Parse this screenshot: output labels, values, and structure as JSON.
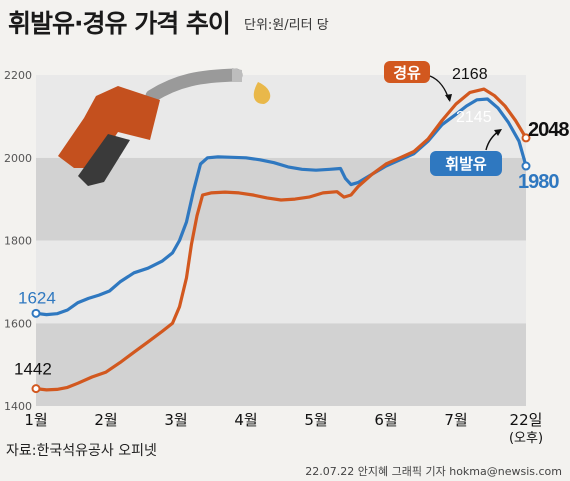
{
  "header": {
    "title": "휘발유·경유 가격 추이",
    "unit": "단위:원/리터 당"
  },
  "footer": {
    "source": "자료:한국석유공사 오피넷",
    "credit": "22.07.22 안지혜 그래픽 기자 hokma@newsis.com"
  },
  "colors": {
    "gasoline": "#2f78c0",
    "diesel": "#d2581f",
    "band_dark": "#d2d2d2",
    "band_light": "#e9e9e9",
    "pump": "#c4501e",
    "nozzle": "#3a3a3a",
    "droplet": "#e9b84a"
  },
  "chart_data": {
    "type": "line",
    "xlabels": [
      "1월",
      "2월",
      "3월",
      "4월",
      "5월",
      "6월",
      "7월",
      "22일"
    ],
    "xlabel_note": "(오후)",
    "ylim": [
      1400,
      2200
    ],
    "yticks": [
      1400,
      1600,
      1800,
      2000,
      2200
    ],
    "series": [
      {
        "name": "휘발유",
        "key": "gasoline",
        "start_label": "1624",
        "peak_label": "2145",
        "end_label": "1980",
        "points": [
          [
            0.0,
            1624
          ],
          [
            0.15,
            1621
          ],
          [
            0.3,
            1623
          ],
          [
            0.45,
            1632
          ],
          [
            0.6,
            1650
          ],
          [
            0.75,
            1660
          ],
          [
            0.9,
            1668
          ],
          [
            1.05,
            1678
          ],
          [
            1.2,
            1700
          ],
          [
            1.4,
            1722
          ],
          [
            1.6,
            1733
          ],
          [
            1.8,
            1750
          ],
          [
            1.95,
            1770
          ],
          [
            2.05,
            1800
          ],
          [
            2.15,
            1845
          ],
          [
            2.25,
            1920
          ],
          [
            2.35,
            1985
          ],
          [
            2.45,
            2000
          ],
          [
            2.6,
            2002
          ],
          [
            2.8,
            2001
          ],
          [
            3.0,
            2000
          ],
          [
            3.2,
            1995
          ],
          [
            3.4,
            1988
          ],
          [
            3.6,
            1978
          ],
          [
            3.8,
            1972
          ],
          [
            4.0,
            1970
          ],
          [
            4.2,
            1972
          ],
          [
            4.35,
            1974
          ],
          [
            4.42,
            1950
          ],
          [
            4.5,
            1935
          ],
          [
            4.6,
            1940
          ],
          [
            4.8,
            1960
          ],
          [
            5.0,
            1980
          ],
          [
            5.2,
            1995
          ],
          [
            5.4,
            2010
          ],
          [
            5.6,
            2040
          ],
          [
            5.8,
            2080
          ],
          [
            6.0,
            2105
          ],
          [
            6.15,
            2125
          ],
          [
            6.3,
            2140
          ],
          [
            6.45,
            2142
          ],
          [
            6.6,
            2120
          ],
          [
            6.75,
            2085
          ],
          [
            6.9,
            2040
          ],
          [
            7.0,
            1980
          ]
        ]
      },
      {
        "name": "경유",
        "key": "diesel",
        "start_label": "1442",
        "peak_label": "2168",
        "end_label": "2048",
        "points": [
          [
            0.0,
            1442
          ],
          [
            0.15,
            1439
          ],
          [
            0.3,
            1440
          ],
          [
            0.45,
            1445
          ],
          [
            0.6,
            1455
          ],
          [
            0.8,
            1470
          ],
          [
            1.0,
            1482
          ],
          [
            1.2,
            1505
          ],
          [
            1.4,
            1530
          ],
          [
            1.6,
            1555
          ],
          [
            1.8,
            1580
          ],
          [
            1.95,
            1600
          ],
          [
            2.05,
            1640
          ],
          [
            2.15,
            1710
          ],
          [
            2.22,
            1790
          ],
          [
            2.3,
            1860
          ],
          [
            2.38,
            1910
          ],
          [
            2.5,
            1915
          ],
          [
            2.7,
            1917
          ],
          [
            2.9,
            1915
          ],
          [
            3.1,
            1910
          ],
          [
            3.3,
            1903
          ],
          [
            3.5,
            1898
          ],
          [
            3.7,
            1900
          ],
          [
            3.9,
            1905
          ],
          [
            4.1,
            1915
          ],
          [
            4.3,
            1918
          ],
          [
            4.4,
            1905
          ],
          [
            4.5,
            1910
          ],
          [
            4.6,
            1930
          ],
          [
            4.8,
            1960
          ],
          [
            5.0,
            1985
          ],
          [
            5.2,
            2000
          ],
          [
            5.4,
            2015
          ],
          [
            5.6,
            2045
          ],
          [
            5.8,
            2090
          ],
          [
            6.0,
            2130
          ],
          [
            6.2,
            2158
          ],
          [
            6.4,
            2166
          ],
          [
            6.55,
            2150
          ],
          [
            6.7,
            2125
          ],
          [
            6.85,
            2090
          ],
          [
            7.0,
            2048
          ]
        ]
      }
    ]
  }
}
